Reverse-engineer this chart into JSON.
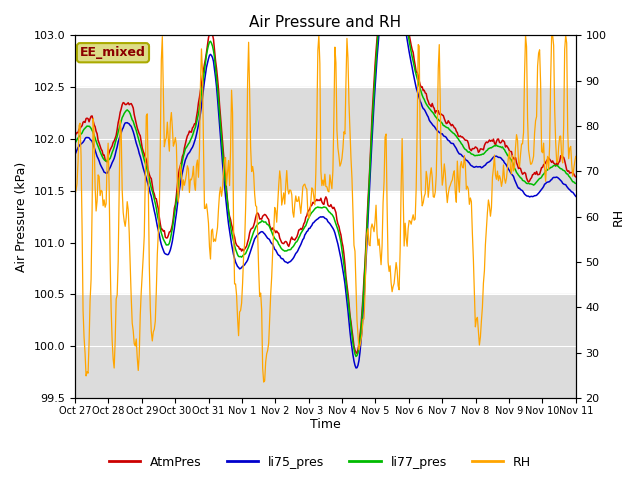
{
  "title": "Air Pressure and RH",
  "xlabel": "Time",
  "ylabel_left": "Air Pressure (kPa)",
  "ylabel_right": "RH",
  "ylim_left": [
    99.5,
    103.0
  ],
  "ylim_right": [
    20,
    100
  ],
  "xtick_labels": [
    "Oct 27",
    "Oct 28",
    "Oct 29",
    "Oct 30",
    "Oct 31",
    "Nov 1",
    "Nov 2",
    "Nov 3",
    "Nov 4",
    "Nov 5",
    "Nov 6",
    "Nov 7",
    "Nov 8",
    "Nov 9",
    "Nov 10",
    "Nov 11"
  ],
  "annotation_text": "EE_mixed",
  "annotation_color": "#8B0000",
  "annotation_bg": "#DDDD88",
  "legend_entries": [
    "AtmPres",
    "li75_pres",
    "li77_pres",
    "RH"
  ],
  "line_colors": [
    "#CC0000",
    "#0000CC",
    "#00BB00",
    "#FFA500"
  ],
  "band_color": "#DCDCDC",
  "n_points": 500
}
